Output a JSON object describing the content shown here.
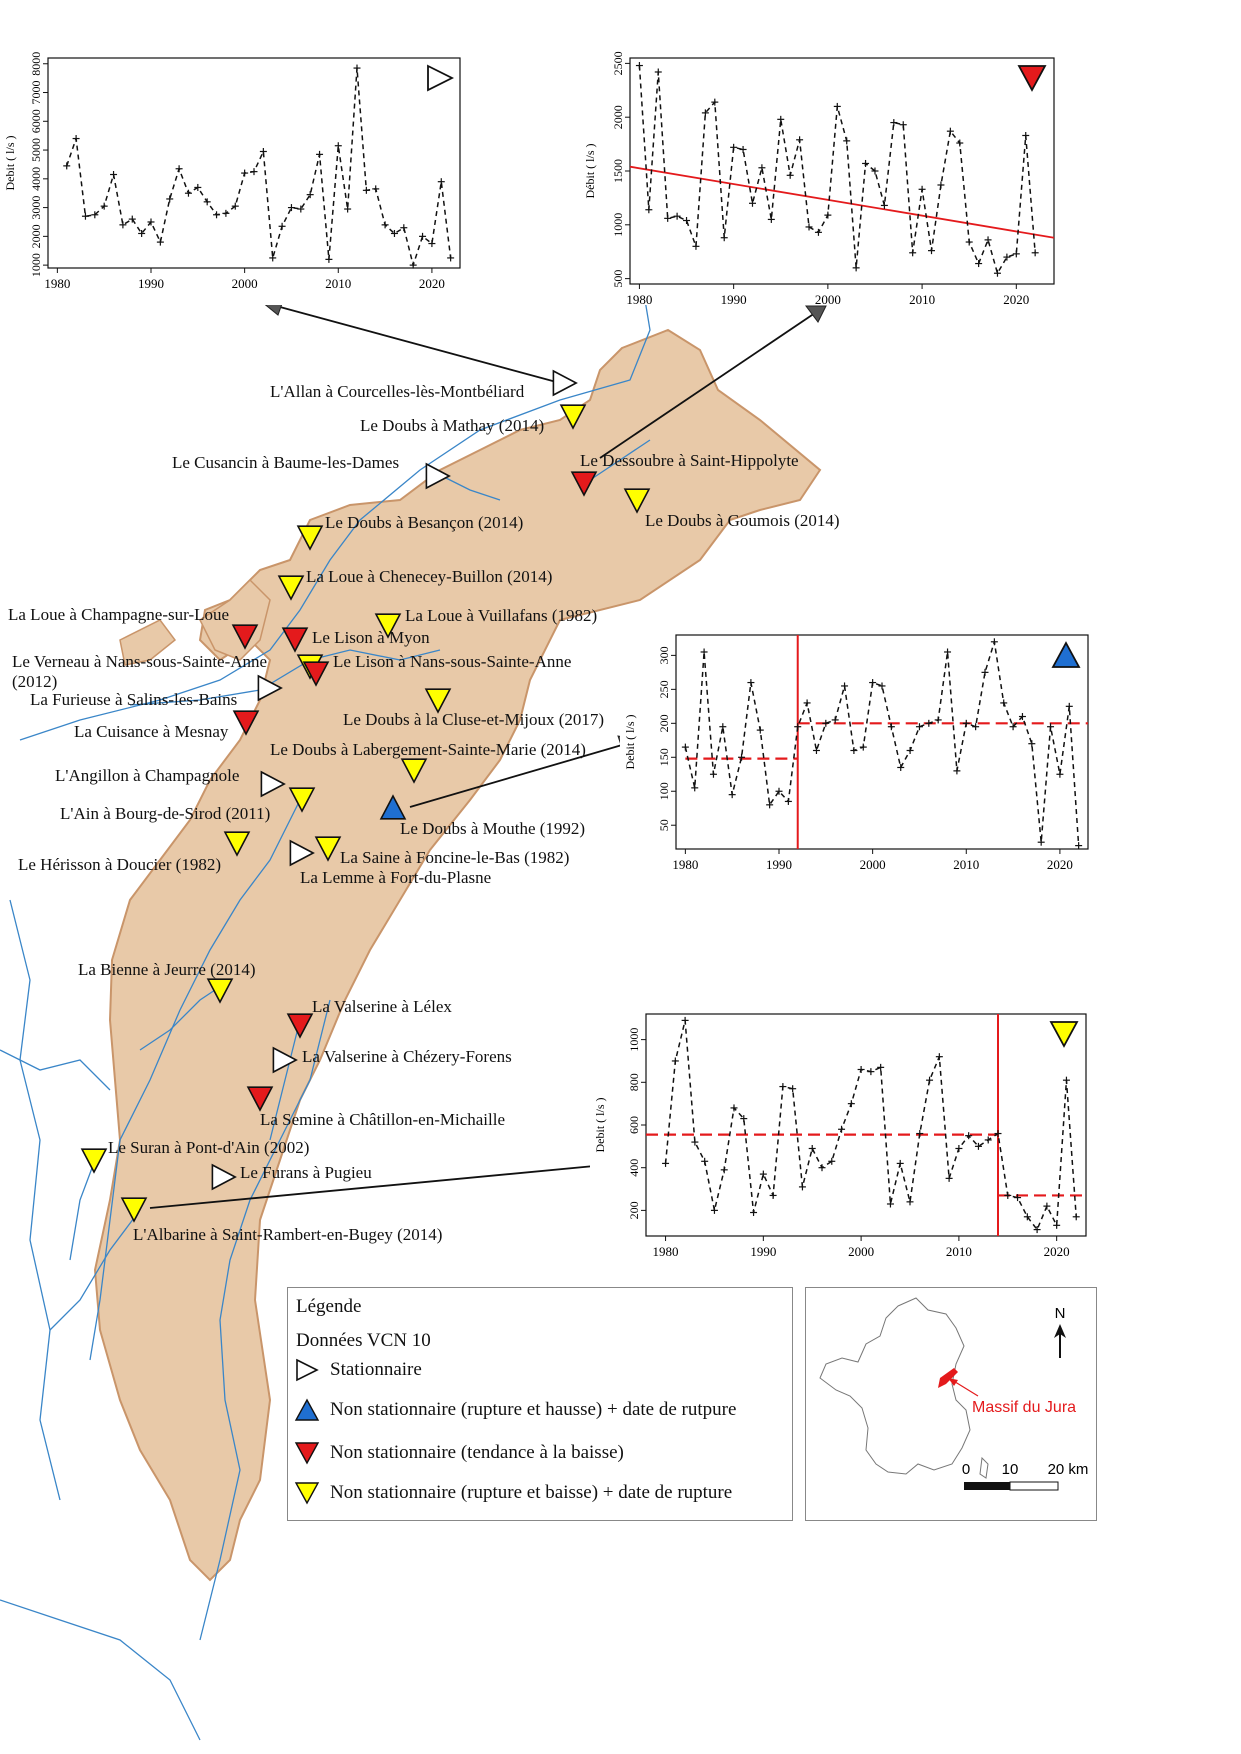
{
  "map": {
    "stations": [
      {
        "label": "L'Allan à Courcelles-lès-Montbéliard",
        "status": "stationnaire"
      },
      {
        "label": "Le Doubs à Mathay (2014)",
        "status": "rupture_baisse"
      },
      {
        "label": "Le Cusancin à Baume-les-Dames",
        "status": "stationnaire"
      },
      {
        "label": "Le Dessoubre à Saint-Hippolyte",
        "status": "tendance_baisse"
      },
      {
        "label": "Le Doubs à Goumois (2014)",
        "status": "rupture_baisse"
      },
      {
        "label": "Le Doubs à Besançon (2014)",
        "status": "rupture_baisse"
      },
      {
        "label": "La Loue à Chenecey-Buillon (2014)",
        "status": "rupture_baisse"
      },
      {
        "label": "La Loue à Champagne-sur-Loue",
        "status": "tendance_baisse"
      },
      {
        "label": "La Loue à Vuillafans (1982)",
        "status": "rupture_baisse"
      },
      {
        "label": "Le Lison à Myon",
        "status": "tendance_baisse"
      },
      {
        "label": "Le Verneau à Nans-sous-Sainte-Anne (2012)",
        "status": "rupture_baisse"
      },
      {
        "label": "Le Lison à Nans-sous-Sainte-Anne",
        "status": "tendance_baisse"
      },
      {
        "label": "La Furieuse à Salins-les-Bains",
        "status": "stationnaire"
      },
      {
        "label": "La Cuisance à Mesnay",
        "status": "tendance_baisse"
      },
      {
        "label": "Le Doubs à la Cluse-et-Mijoux (2017)",
        "status": "rupture_baisse"
      },
      {
        "label": "Le Doubs à Labergement-Sainte-Marie (2014)",
        "status": "rupture_baisse"
      },
      {
        "label": "L'Angillon à Champagnole",
        "status": "stationnaire"
      },
      {
        "label": "L'Ain à Bourg-de-Sirod (2011)",
        "status": "rupture_baisse"
      },
      {
        "label": "Le Doubs à Mouthe (1992)",
        "status": "rupture_hausse"
      },
      {
        "label": "Le Hérisson à Doucier (1982)",
        "status": "rupture_baisse"
      },
      {
        "label": "La Saine à Foncine-le-Bas (1982)",
        "status": "rupture_baisse"
      },
      {
        "label": "La Lemme à Fort-du-Plasne",
        "status": "stationnaire"
      },
      {
        "label": "La Bienne à Jeurre (2014)",
        "status": "rupture_baisse"
      },
      {
        "label": "La Valserine à Lélex",
        "status": "tendance_baisse"
      },
      {
        "label": "La Valserine à Chézery-Forens",
        "status": "stationnaire"
      },
      {
        "label": "La Semine à Châtillon-en-Michaille",
        "status": "tendance_baisse"
      },
      {
        "label": "Le Suran à Pont-d'Ain (2002)",
        "status": "rupture_baisse"
      },
      {
        "label": "Le Furans à Pugieu",
        "status": "stationnaire"
      },
      {
        "label": "L'Albarine à Saint-Rambert-en-Bugey (2014)",
        "status": "rupture_baisse"
      }
    ],
    "colors": {
      "massif_fill": "#e8c9a8",
      "massif_stroke": "#c9956a",
      "river": "#3a86c8",
      "stationnaire": "#ffffff",
      "hausse": "#1f6fd1",
      "baisse_tendance": "#e41a1c",
      "baisse_rupture": "#ffff00",
      "trend_line": "#e41a1c"
    }
  },
  "chart_data": [
    {
      "type": "line",
      "ylabel": "Debit ( l/s )",
      "symbol": "stationnaire",
      "xlim": [
        1979,
        2023
      ],
      "ylim": [
        900,
        8200
      ],
      "xticks": [
        1980,
        1990,
        2000,
        2010,
        2020
      ],
      "yticks": [
        1000,
        2000,
        3000,
        4000,
        5000,
        6000,
        7000,
        8000
      ],
      "x": [
        1981,
        1982,
        1983,
        1984,
        1985,
        1986,
        1987,
        1988,
        1989,
        1990,
        1991,
        1992,
        1993,
        1994,
        1995,
        1996,
        1997,
        1998,
        1999,
        2000,
        2001,
        2002,
        2003,
        2004,
        2005,
        2006,
        2007,
        2008,
        2009,
        2010,
        2011,
        2012,
        2013,
        2014,
        2015,
        2016,
        2017,
        2018,
        2019,
        2020,
        2021,
        2022
      ],
      "values": [
        4450,
        5400,
        2700,
        2750,
        3050,
        4150,
        2400,
        2600,
        2100,
        2500,
        1800,
        3300,
        4350,
        3500,
        3700,
        3200,
        2750,
        2800,
        3050,
        4200,
        4250,
        4950,
        1250,
        2350,
        3000,
        2950,
        3450,
        4850,
        1200,
        5150,
        2950,
        7850,
        3600,
        3650,
        2400,
        2100,
        2300,
        1000,
        2000,
        1750,
        3900,
        1250
      ],
      "segments": []
    },
    {
      "type": "line",
      "ylabel": "Débit ( l/s )",
      "symbol": "tendance_baisse",
      "xlim": [
        1979,
        2024
      ],
      "ylim": [
        450,
        2550
      ],
      "xticks": [
        1980,
        1990,
        2000,
        2010,
        2020
      ],
      "yticks": [
        500,
        1000,
        1500,
        2000,
        2500
      ],
      "x": [
        1980,
        1981,
        1982,
        1983,
        1984,
        1985,
        1986,
        1987,
        1988,
        1989,
        1990,
        1991,
        1992,
        1993,
        1994,
        1995,
        1996,
        1997,
        1998,
        1999,
        2000,
        2001,
        2002,
        2003,
        2004,
        2005,
        2006,
        2007,
        2008,
        2009,
        2010,
        2011,
        2012,
        2013,
        2014,
        2015,
        2016,
        2017,
        2018,
        2019,
        2020,
        2021,
        2022
      ],
      "values": [
        2480,
        1140,
        2420,
        1060,
        1080,
        1040,
        800,
        2040,
        2140,
        880,
        1720,
        1700,
        1200,
        1530,
        1050,
        1980,
        1460,
        1790,
        980,
        930,
        1090,
        2100,
        1780,
        600,
        1570,
        1500,
        1180,
        1950,
        1930,
        740,
        1330,
        760,
        1370,
        1870,
        1760,
        840,
        640,
        860,
        550,
        700,
        730,
        1830,
        740
      ],
      "trend": {
        "from": [
          1979,
          1540
        ],
        "to": [
          2024,
          880
        ]
      },
      "segments": []
    },
    {
      "type": "line",
      "ylabel": "Debit ( l/s )",
      "symbol": "rupture_hausse",
      "xlim": [
        1979,
        2023
      ],
      "ylim": [
        15,
        330
      ],
      "xticks": [
        1980,
        1990,
        2000,
        2010,
        2020
      ],
      "yticks": [
        50,
        100,
        150,
        200,
        250,
        300
      ],
      "x": [
        1980,
        1981,
        1982,
        1983,
        1984,
        1985,
        1986,
        1987,
        1988,
        1989,
        1990,
        1991,
        1992,
        1993,
        1994,
        1995,
        1996,
        1997,
        1998,
        1999,
        2000,
        2001,
        2002,
        2003,
        2004,
        2005,
        2006,
        2007,
        2008,
        2009,
        2010,
        2011,
        2012,
        2013,
        2014,
        2015,
        2016,
        2017,
        2018,
        2019,
        2020,
        2021,
        2022
      ],
      "values": [
        165,
        105,
        305,
        125,
        195,
        95,
        150,
        260,
        190,
        80,
        100,
        85,
        195,
        230,
        160,
        200,
        205,
        255,
        160,
        165,
        260,
        255,
        195,
        135,
        160,
        195,
        200,
        205,
        305,
        130,
        200,
        195,
        275,
        320,
        230,
        195,
        210,
        170,
        25,
        195,
        125,
        225,
        20
      ],
      "rupture_year": 1992,
      "segments": [
        {
          "from": 1980,
          "to": 1992,
          "mean": 148
        },
        {
          "from": 1992,
          "to": 2023,
          "mean": 200
        }
      ]
    },
    {
      "type": "line",
      "ylabel": "Debit ( l/s )",
      "symbol": "rupture_baisse",
      "xlim": [
        1978,
        2023
      ],
      "ylim": [
        80,
        1120
      ],
      "xticks": [
        1980,
        1990,
        2000,
        2010,
        2020
      ],
      "yticks": [
        200,
        400,
        600,
        800,
        1000
      ],
      "x": [
        1980,
        1981,
        1982,
        1983,
        1984,
        1985,
        1986,
        1987,
        1988,
        1989,
        1990,
        1991,
        1992,
        1993,
        1994,
        1995,
        1996,
        1997,
        1998,
        1999,
        2000,
        2001,
        2002,
        2003,
        2004,
        2005,
        2006,
        2007,
        2008,
        2009,
        2010,
        2011,
        2012,
        2013,
        2014,
        2015,
        2016,
        2017,
        2018,
        2019,
        2020,
        2021,
        2022
      ],
      "values": [
        420,
        900,
        1090,
        520,
        430,
        200,
        390,
        680,
        630,
        190,
        370,
        270,
        780,
        770,
        310,
        490,
        400,
        430,
        580,
        700,
        860,
        850,
        870,
        230,
        420,
        240,
        560,
        810,
        920,
        350,
        490,
        550,
        500,
        530,
        560,
        270,
        260,
        170,
        110,
        220,
        130,
        810,
        170
      ],
      "rupture_year": 2014,
      "segments": [
        {
          "from": 1978,
          "to": 2014,
          "mean": 555
        },
        {
          "from": 2014,
          "to": 2023,
          "mean": 270
        }
      ]
    }
  ],
  "legend": {
    "title": "Légende",
    "subtitle": "Données VCN 10",
    "items": [
      {
        "symbol": "stationnaire",
        "label": "Stationnaire"
      },
      {
        "symbol": "rupture_hausse",
        "label": "Non stationnaire (rupture et hausse) + date de rutpure"
      },
      {
        "symbol": "tendance_baisse",
        "label": "Non stationnaire (tendance à la baisse)"
      },
      {
        "symbol": "rupture_baisse",
        "label": "Non stationnaire (rupture et baisse) + date de rupture"
      }
    ]
  },
  "locator": {
    "north": "N",
    "massif_label": "Massif du Jura",
    "scale_labels": [
      "0",
      "10",
      "20 km"
    ]
  }
}
